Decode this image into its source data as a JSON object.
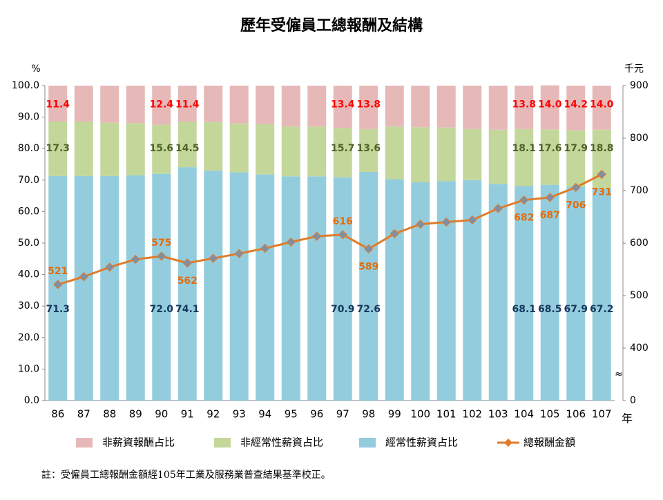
{
  "chart_data": {
    "type": "stacked_bar_line",
    "title": "歷年受僱員工總報酬及結構",
    "y_unit": "%",
    "y2_unit": "千元",
    "x_unit": "年",
    "note": "註：受僱員工總報酬金額經105年工業及服務業普查結果基準校正。",
    "categories": [
      "86",
      "87",
      "88",
      "89",
      "90",
      "91",
      "92",
      "93",
      "94",
      "95",
      "96",
      "97",
      "98",
      "99",
      "100",
      "101",
      "102",
      "103",
      "104",
      "105",
      "106",
      "107"
    ],
    "series": [
      {
        "name": "經常性薪資占比",
        "color": "#93cddd",
        "label_color": "#17375e",
        "values": [
          71.3,
          71.3,
          71.3,
          71.5,
          72.0,
          74.1,
          73.0,
          72.5,
          71.8,
          71.2,
          71.2,
          70.9,
          72.6,
          70.3,
          69.3,
          69.7,
          70.0,
          68.8,
          68.1,
          68.5,
          67.9,
          67.2
        ],
        "value_labels": [
          "71.3",
          null,
          null,
          null,
          "72.0",
          "74.1",
          null,
          null,
          null,
          null,
          null,
          "70.9",
          "72.6",
          null,
          null,
          null,
          null,
          null,
          "68.1",
          "68.5",
          "67.9",
          "67.2"
        ]
      },
      {
        "name": "非經常性薪資占比",
        "color": "#c4d79b",
        "label_color": "#4f6228",
        "values": [
          17.3,
          17.3,
          16.9,
          16.6,
          15.6,
          14.5,
          15.4,
          15.5,
          16.0,
          15.8,
          15.8,
          15.7,
          13.6,
          16.7,
          17.5,
          17.0,
          16.2,
          17.2,
          18.1,
          17.6,
          17.9,
          18.8
        ],
        "value_labels": [
          "17.3",
          null,
          null,
          null,
          "15.6",
          "14.5",
          null,
          null,
          null,
          null,
          null,
          "15.7",
          "13.6",
          null,
          null,
          null,
          null,
          null,
          "18.1",
          "17.6",
          "17.9",
          "18.8"
        ]
      },
      {
        "name": "非薪資報酬占比",
        "color": "#e6b9b8",
        "label_color": "#ff0000",
        "values": [
          11.4,
          11.4,
          11.8,
          11.9,
          12.4,
          11.4,
          11.6,
          12.0,
          12.2,
          13.0,
          13.0,
          13.4,
          13.8,
          13.0,
          13.2,
          13.3,
          13.8,
          14.0,
          13.8,
          14.0,
          14.2,
          14.0
        ],
        "value_labels": [
          "11.4",
          null,
          null,
          null,
          "12.4",
          "11.4",
          null,
          null,
          null,
          null,
          null,
          "13.4",
          "13.8",
          null,
          null,
          null,
          null,
          null,
          "13.8",
          "14.0",
          "14.2",
          "14.0"
        ]
      },
      {
        "name": "總報酬金額",
        "type": "line",
        "axis": "y2",
        "color": "#e07b29",
        "marker_color": "#7f8fa6",
        "label_color": "#e46c0a",
        "values": [
          521,
          536,
          554,
          569,
          575,
          562,
          571,
          580,
          590,
          602,
          613,
          616,
          589,
          618,
          636,
          640,
          644,
          666,
          682,
          687,
          706,
          731
        ],
        "value_labels": [
          "521",
          null,
          null,
          null,
          "575",
          "562",
          null,
          null,
          null,
          null,
          null,
          "616",
          "589",
          null,
          null,
          null,
          null,
          null,
          "682",
          "687",
          "706",
          "731"
        ]
      }
    ],
    "ylim": [
      0,
      100
    ],
    "yticks": [
      {
        "value": 0,
        "label": "0.0"
      },
      {
        "value": 10,
        "label": "10.0"
      },
      {
        "value": 20,
        "label": "20.0"
      },
      {
        "value": 30,
        "label": "30.0"
      },
      {
        "value": 40,
        "label": "40.0"
      },
      {
        "value": 50,
        "label": "50.0"
      },
      {
        "value": 60,
        "label": "60.0"
      },
      {
        "value": 70,
        "label": "70.0"
      },
      {
        "value": 80,
        "label": "80.0"
      },
      {
        "value": 90,
        "label": "90.0"
      },
      {
        "value": 100,
        "label": "100.0"
      }
    ],
    "y2lim": [
      300,
      900
    ],
    "y2ticks": [
      {
        "value": 300,
        "label": "0"
      },
      400,
      500,
      600,
      700,
      800,
      900
    ],
    "y2_axis_break": true,
    "legend": "bottom"
  }
}
